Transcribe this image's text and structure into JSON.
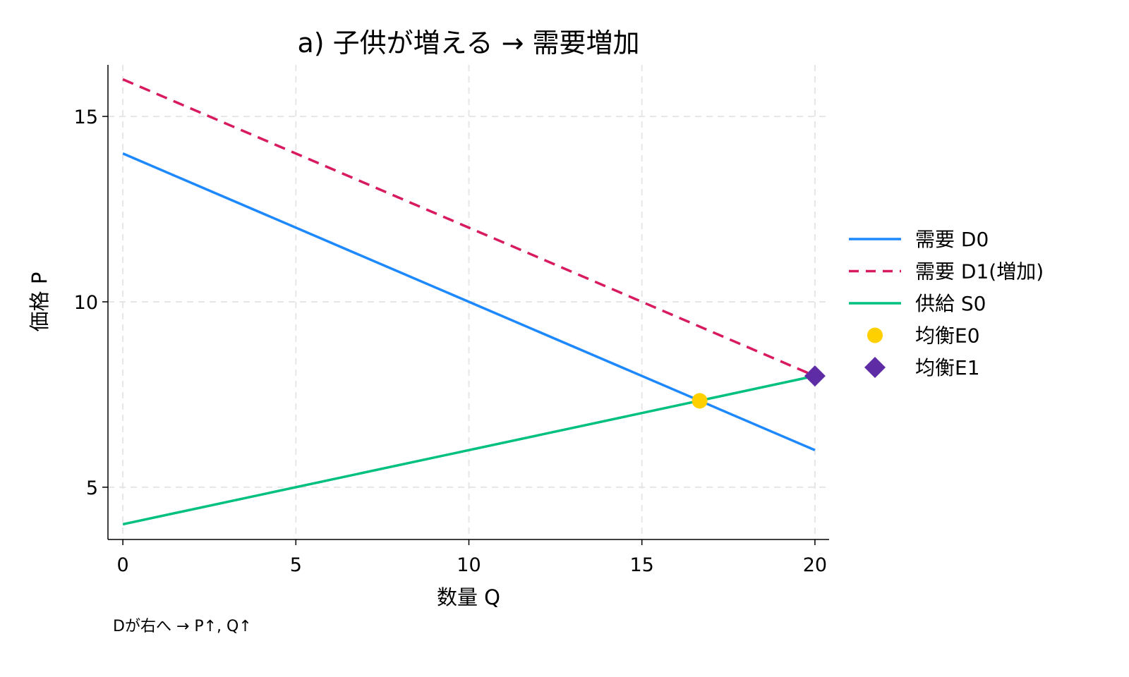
{
  "chart_data": {
    "type": "line",
    "title": "a) 子供が増える → 需要増加",
    "xlabel": "数量 Q",
    "ylabel": "価格 P",
    "caption": "Dが右へ → P↑, Q↑",
    "xlim": [
      -0.43,
      20.41
    ],
    "ylim": [
      3.59,
      16.39
    ],
    "xticks": [
      0,
      5,
      10,
      15,
      20
    ],
    "xtick_labels": [
      "0",
      "5",
      "10",
      "15",
      "20"
    ],
    "yticks": [
      5,
      10,
      15
    ],
    "ytick_labels": [
      "5",
      "10",
      "15"
    ],
    "grid": true,
    "legend_position": "right",
    "series": [
      {
        "name": "需要 D0",
        "kind": "line",
        "style": "solid",
        "color": "#1E88FF",
        "x": [
          0,
          20
        ],
        "y": [
          14,
          6
        ]
      },
      {
        "name": "需要 D1(増加)",
        "kind": "line",
        "style": "dashed",
        "color": "#D81B60",
        "x": [
          0,
          20
        ],
        "y": [
          16,
          8
        ]
      },
      {
        "name": "供給 S0",
        "kind": "line",
        "style": "solid",
        "color": "#00C07F",
        "x": [
          0,
          20
        ],
        "y": [
          4,
          8
        ]
      },
      {
        "name": "均衡E0",
        "kind": "point",
        "marker": "circle",
        "color": "#FFD000",
        "x": [
          16.67
        ],
        "y": [
          7.33
        ]
      },
      {
        "name": "均衡E1",
        "kind": "point",
        "marker": "diamond",
        "color": "#5E2CA5",
        "x": [
          20
        ],
        "y": [
          8
        ]
      }
    ]
  }
}
